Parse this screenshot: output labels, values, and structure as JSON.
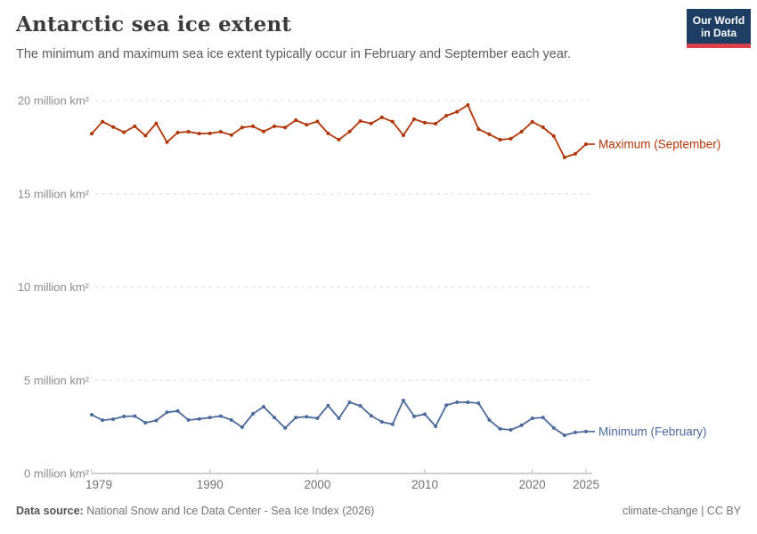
{
  "header": {
    "title": "Antarctic sea ice extent",
    "subtitle": "The minimum and maximum sea ice extent typically occur in February and September each year.",
    "logo": {
      "line1": "Our World",
      "line2": "in Data",
      "bg_color": "#1d3d63",
      "accent_color": "#d8404a"
    }
  },
  "chart_data": {
    "type": "line",
    "title": "Antarctic sea ice extent",
    "xlabel": "",
    "ylabel": "million km²",
    "xlim": [
      1979,
      2025
    ],
    "ylim": [
      0,
      20
    ],
    "grid": "horizontal dashed",
    "legend_position": "end-of-line labels",
    "x": [
      1979,
      1980,
      1981,
      1982,
      1983,
      1984,
      1985,
      1986,
      1987,
      1988,
      1989,
      1990,
      1991,
      1992,
      1993,
      1994,
      1995,
      1996,
      1997,
      1998,
      1999,
      2000,
      2001,
      2002,
      2003,
      2004,
      2005,
      2006,
      2007,
      2008,
      2009,
      2010,
      2011,
      2012,
      2013,
      2014,
      2015,
      2016,
      2017,
      2018,
      2019,
      2020,
      2021,
      2022,
      2023,
      2024,
      2025
    ],
    "series": [
      {
        "name": "Maximum (September)",
        "color": "#B13507",
        "values": [
          18.22,
          18.87,
          18.58,
          18.3,
          18.62,
          18.12,
          18.78,
          17.77,
          18.28,
          18.33,
          18.23,
          18.24,
          18.33,
          18.15,
          18.56,
          18.62,
          18.34,
          18.62,
          18.56,
          18.95,
          18.7,
          18.88,
          18.24,
          17.9,
          18.34,
          18.9,
          18.77,
          19.1,
          18.87,
          18.14,
          19.0,
          18.81,
          18.76,
          19.19,
          19.4,
          19.76,
          18.47,
          18.19,
          17.9,
          17.95,
          18.33,
          18.86,
          18.57,
          18.09,
          16.95,
          17.14,
          17.66
        ]
      },
      {
        "name": "Minimum (February)",
        "color": "#4C6A9C",
        "values": [
          3.15,
          2.86,
          2.91,
          3.06,
          3.08,
          2.72,
          2.84,
          3.28,
          3.35,
          2.87,
          2.92,
          3.0,
          3.08,
          2.87,
          2.48,
          3.2,
          3.58,
          3.0,
          2.44,
          3.0,
          3.04,
          2.96,
          3.64,
          2.96,
          3.82,
          3.63,
          3.1,
          2.77,
          2.64,
          3.92,
          3.06,
          3.18,
          2.53,
          3.66,
          3.82,
          3.82,
          3.77,
          2.87,
          2.39,
          2.34,
          2.58,
          2.96,
          3.0,
          2.44,
          2.05,
          2.2,
          2.25
        ]
      }
    ],
    "y_ticks": [
      {
        "value": 0,
        "label": "0 million km²"
      },
      {
        "value": 5,
        "label": "5 million km²"
      },
      {
        "value": 10,
        "label": "10 million km²"
      },
      {
        "value": 15,
        "label": "15 million km²"
      },
      {
        "value": 20,
        "label": "20 million km²"
      }
    ],
    "x_ticks": [
      {
        "value": 1979,
        "label": "1979"
      },
      {
        "value": 1990,
        "label": "1990"
      },
      {
        "value": 2000,
        "label": "2000"
      },
      {
        "value": 2010,
        "label": "2010"
      },
      {
        "value": 2020,
        "label": "2020"
      },
      {
        "value": 2025,
        "label": "2025"
      }
    ]
  },
  "footer": {
    "datasource_label": "Data source:",
    "datasource_value": "National Snow and Ice Data Center - Sea Ice Index (2026)",
    "attribution": "climate-change | CC BY"
  }
}
